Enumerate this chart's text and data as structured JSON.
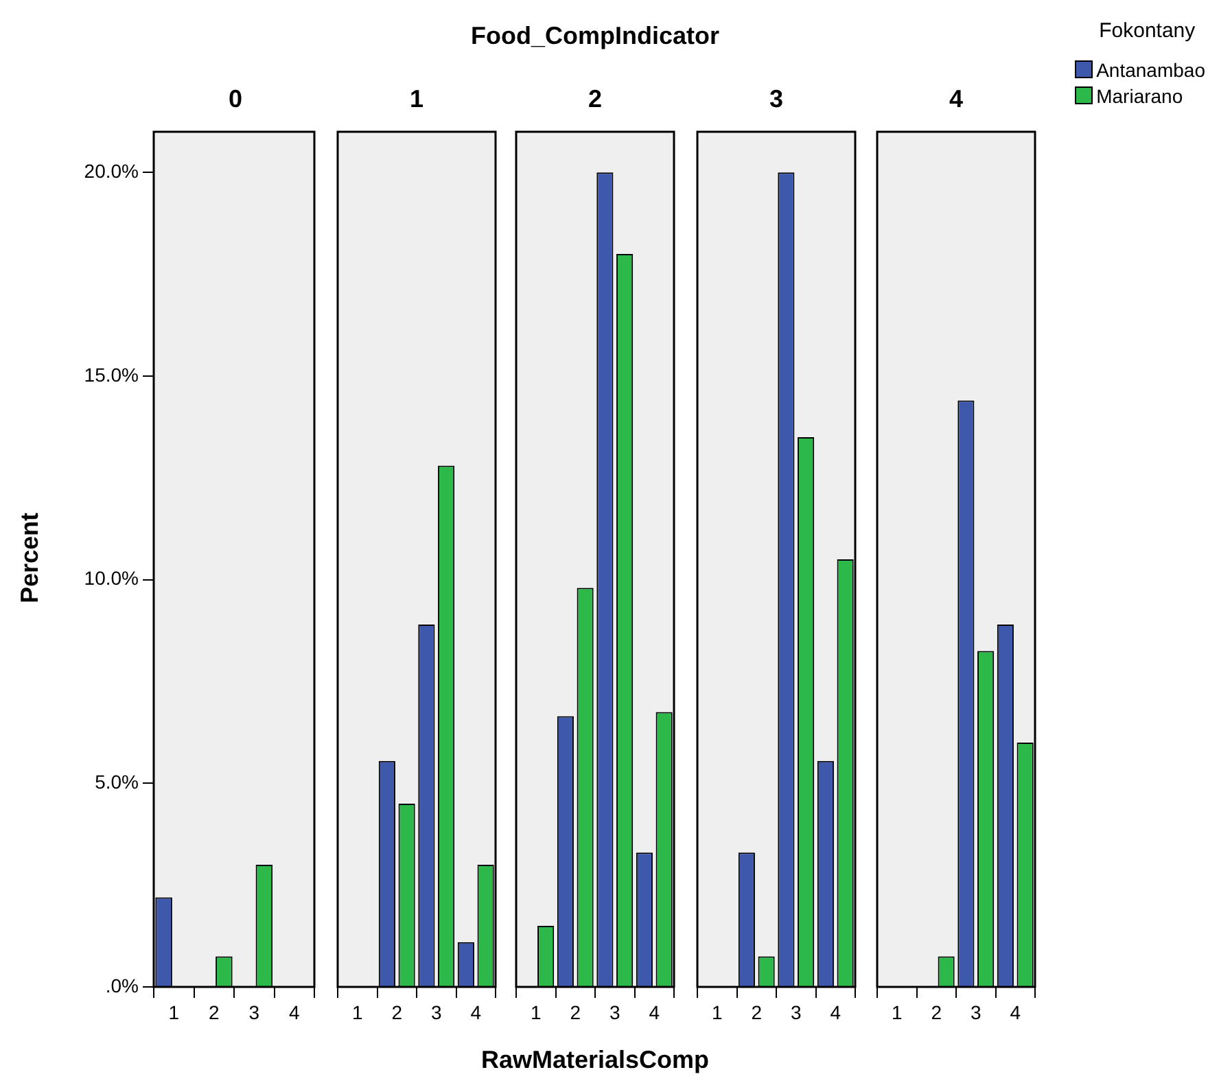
{
  "chart_data": [
    {
      "type": "bar",
      "title": "0",
      "ylabel": "Percent",
      "categories": [
        "1",
        "2",
        "3",
        "4"
      ],
      "ylim": [
        0,
        21
      ],
      "yticks": [
        {
          "value": 0,
          "label": ".0%"
        },
        {
          "value": 5,
          "label": "5.0%"
        },
        {
          "value": 10,
          "label": "10.0%"
        },
        {
          "value": 15,
          "label": "15.0%"
        },
        {
          "value": 20,
          "label": "20.0%"
        }
      ],
      "series": [
        {
          "color": "#3e58ac",
          "values": [
            2.2,
            null,
            null,
            null
          ]
        },
        {
          "color": "#2db84a",
          "values": [
            null,
            0.75,
            3.0,
            null
          ]
        }
      ]
    },
    {
      "type": "bar",
      "title": "1",
      "categories": [
        "1",
        "2",
        "3",
        "4"
      ],
      "ylim": [
        0,
        21
      ],
      "tick_labels": "x",
      "series": [
        {
          "color": "#3e58ac",
          "values": [
            null,
            5.55,
            8.9,
            1.1
          ]
        },
        {
          "color": "#2db84a",
          "values": [
            null,
            4.5,
            12.8,
            3.0
          ]
        }
      ]
    },
    {
      "type": "bar",
      "title": "2",
      "xlabel": "RawMaterialsComp",
      "annotations": [
        "Food_CompIndicator"
      ],
      "categories": [
        "1",
        "2",
        "3",
        "4"
      ],
      "ylim": [
        0,
        21
      ],
      "tick_labels": "x",
      "series": [
        {
          "color": "#3e58ac",
          "values": [
            null,
            6.65,
            20.0,
            3.3
          ]
        },
        {
          "color": "#2db84a",
          "values": [
            1.5,
            9.8,
            18.0,
            6.75
          ]
        }
      ]
    },
    {
      "type": "bar",
      "title": "3",
      "categories": [
        "1",
        "2",
        "3",
        "4"
      ],
      "ylim": [
        0,
        21
      ],
      "tick_labels": "x",
      "series": [
        {
          "color": "#3e58ac",
          "values": [
            null,
            3.3,
            20.0,
            5.55
          ]
        },
        {
          "color": "#2db84a",
          "values": [
            null,
            0.75,
            13.5,
            10.5
          ]
        }
      ]
    },
    {
      "type": "bar",
      "title": "4",
      "legend": "top right",
      "legend_title": "Fokontany",
      "categories": [
        "1",
        "2",
        "3",
        "4"
      ],
      "ylim": [
        0,
        21
      ],
      "tick_labels": "x",
      "series": [
        {
          "name": "Antanambao",
          "color": "#3e58ac",
          "values": [
            null,
            null,
            14.4,
            8.9
          ]
        },
        {
          "name": "Mariarano",
          "color": "#2db84a",
          "values": [
            null,
            0.75,
            8.25,
            6.0
          ]
        }
      ]
    }
  ]
}
